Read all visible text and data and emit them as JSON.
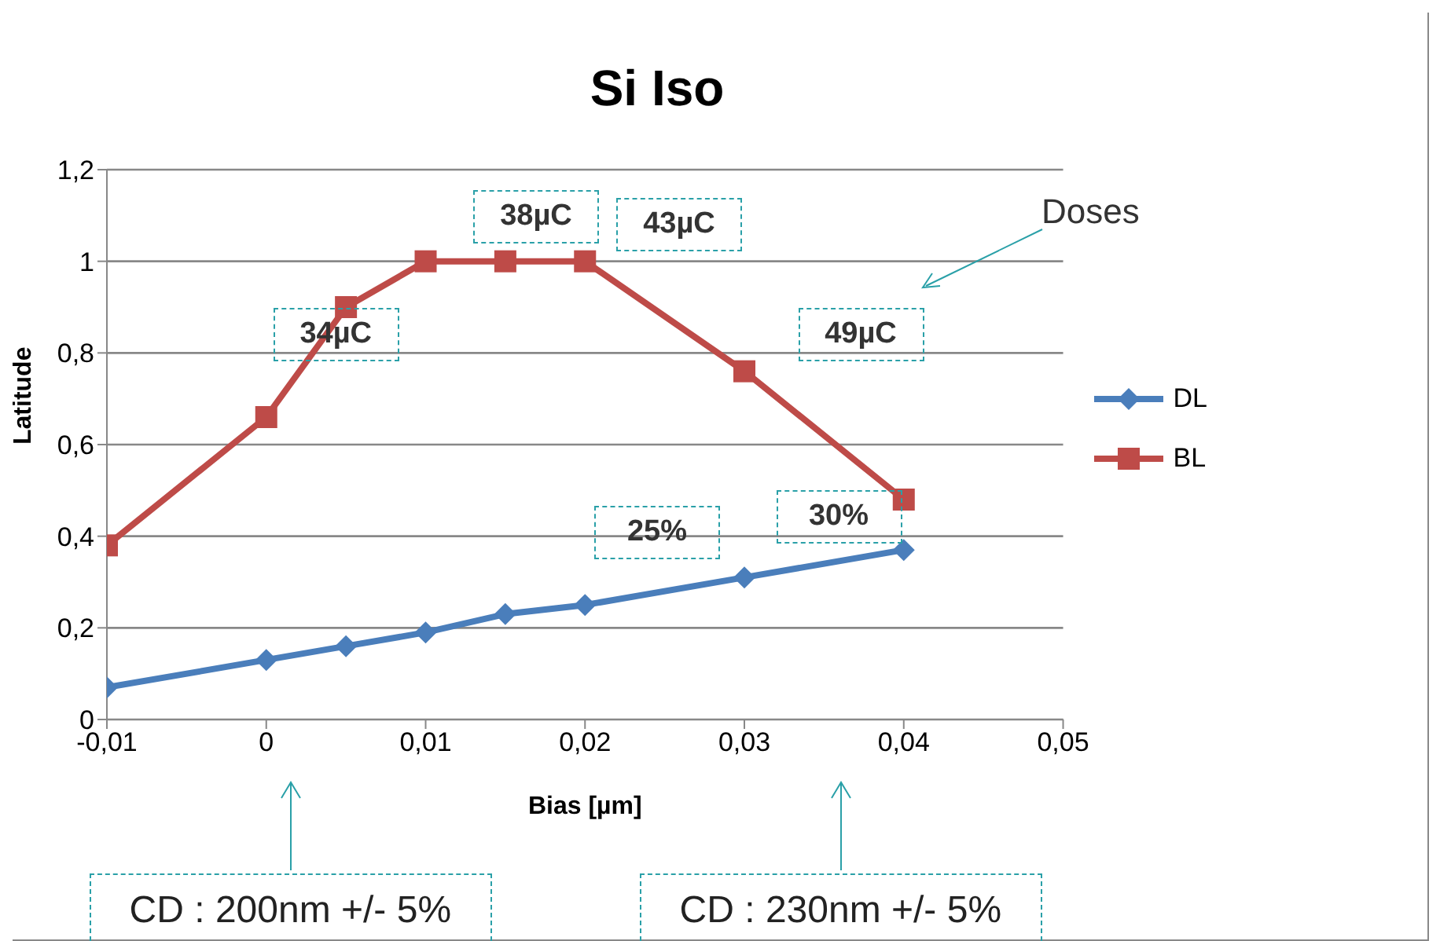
{
  "chart_data": {
    "type": "line",
    "title": "Si Iso",
    "xlabel": "Bias [µm]",
    "ylabel": "Latitude",
    "x": [
      -0.01,
      0,
      0.005,
      0.01,
      0.015,
      0.02,
      0.03,
      0.04
    ],
    "series": [
      {
        "name": "DL",
        "color": "#4a7ebb",
        "marker": "diamond",
        "values": [
          0.07,
          0.13,
          0.16,
          0.19,
          0.23,
          0.25,
          0.31,
          0.37
        ]
      },
      {
        "name": "BL",
        "color": "#be4b48",
        "marker": "square",
        "values": [
          0.38,
          0.66,
          0.9,
          1.0,
          1.0,
          1.0,
          0.76,
          0.48
        ]
      }
    ],
    "xlim": [
      -0.01,
      0.05
    ],
    "xticks": [
      {
        "value": -0.01,
        "label": "-0,01"
      },
      0,
      {
        "value": 0.01,
        "label": "0,01"
      },
      {
        "value": 0.02,
        "label": "0,02"
      },
      {
        "value": 0.03,
        "label": "0,03"
      },
      {
        "value": 0.04,
        "label": "0,04"
      },
      {
        "value": 0.05,
        "label": "0,05"
      }
    ],
    "ylim": [
      0,
      1.2
    ],
    "yticks": [
      0,
      {
        "value": 0.2,
        "label": "0,2"
      },
      {
        "value": 0.4,
        "label": "0,4"
      },
      {
        "value": 0.6,
        "label": "0,6"
      },
      {
        "value": 0.8,
        "label": "0,8"
      },
      {
        "value": 1,
        "label": "1"
      },
      {
        "value": 1.2,
        "label": "1,2"
      }
    ],
    "grid": "y",
    "legend": "right",
    "line_style": "solid",
    "annotations": [
      "34µC",
      "38µC",
      "43µC",
      "49µC",
      "25%",
      "30%",
      "Doses",
      "CD : 200nm +/- 5%",
      "CD : 230nm +/- 5%"
    ]
  }
}
